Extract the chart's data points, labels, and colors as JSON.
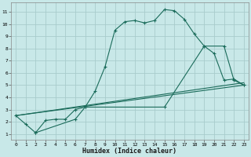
{
  "xlabel": "Humidex (Indice chaleur)",
  "background_color": "#c8e8e8",
  "grid_color": "#a8cccc",
  "line_color": "#1a6b5a",
  "x_ticks": [
    0,
    1,
    2,
    3,
    4,
    5,
    6,
    7,
    8,
    9,
    10,
    11,
    12,
    13,
    14,
    15,
    16,
    17,
    18,
    19,
    20,
    21,
    22,
    23
  ],
  "y_ticks": [
    1,
    2,
    3,
    4,
    5,
    6,
    7,
    8,
    9,
    10,
    11
  ],
  "xlim": [
    -0.5,
    23.5
  ],
  "ylim": [
    0.5,
    11.8
  ],
  "line1_x": [
    0,
    1,
    2,
    3,
    4,
    5,
    6,
    7,
    8,
    9,
    10,
    11,
    12,
    13,
    14,
    15,
    16,
    17,
    18,
    19,
    20,
    21,
    22,
    23
  ],
  "line1_y": [
    2.5,
    1.8,
    1.1,
    2.1,
    2.2,
    2.2,
    3.0,
    3.2,
    4.5,
    6.5,
    9.5,
    10.2,
    10.3,
    10.1,
    10.3,
    11.2,
    11.1,
    10.4,
    9.2,
    8.2,
    7.6,
    5.4,
    5.5,
    5.0
  ],
  "line2_x": [
    0,
    23
  ],
  "line2_y": [
    2.5,
    5.0
  ],
  "line3_x": [
    0,
    23
  ],
  "line3_y": [
    2.5,
    5.2
  ],
  "line4_x": [
    2,
    6,
    7,
    15,
    19,
    21,
    22,
    23
  ],
  "line4_y": [
    1.1,
    2.2,
    3.2,
    3.2,
    8.2,
    8.2,
    5.4,
    5.0
  ]
}
